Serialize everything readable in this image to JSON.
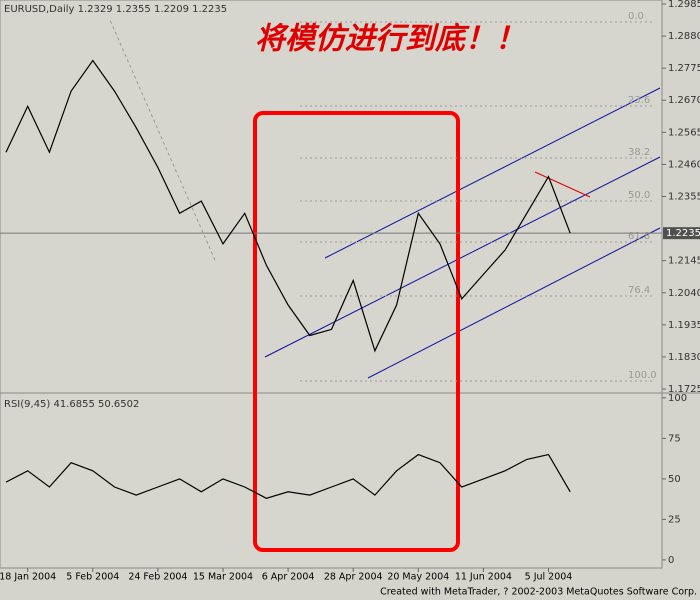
{
  "annotation": "将模仿进行到底！！",
  "footer": "Created with MetaTrader, ? 2002-2003 MetaQuotes Software Corp.",
  "chart_data": [
    {
      "type": "line",
      "title": "EURUSD,Daily  1.2329 1.2355 1.2209 1.2235",
      "categories": [
        null,
        "18 Jan 2004",
        null,
        null,
        "5 Feb 2004",
        null,
        null,
        "24 Feb 2004",
        null,
        null,
        "15 Mar 2004",
        null,
        null,
        "6 Apr 2004",
        null,
        null,
        "28 Apr 2004",
        null,
        null,
        "20 May 2004",
        null,
        null,
        "11 Jun 2004",
        null,
        null,
        "5 Jul 2004",
        null
      ],
      "values": [
        1.25,
        1.265,
        1.25,
        1.27,
        1.28,
        1.27,
        1.258,
        1.245,
        1.23,
        1.234,
        1.22,
        1.23,
        1.213,
        1.2,
        1.19,
        1.192,
        1.208,
        1.185,
        1.2,
        1.23,
        1.22,
        1.202,
        1.21,
        1.218,
        1.23,
        1.242,
        1.2235
      ],
      "color": "#000000",
      "ylim": [
        1.1712,
        1.2998
      ],
      "yticks": [
        1.2985,
        {
          "value": 1.288,
          "label": "1.2880"
        },
        1.2775,
        {
          "value": 1.267,
          "label": "1.2670"
        },
        1.2565,
        {
          "value": 1.246,
          "label": "1.2460"
        },
        1.2355,
        1.2145,
        {
          "value": 1.204,
          "label": "1.2040"
        },
        1.1935,
        {
          "value": 1.183,
          "label": "1.1830"
        },
        1.1725
      ],
      "current_price": 1.2235,
      "fib_levels": [
        "0.0",
        "23.6",
        "38.2",
        "50.0",
        "61.8",
        "76.4",
        "100.0"
      ]
    },
    {
      "type": "line",
      "title": "RSI(9,45)  41.6855 50.6502",
      "values": [
        48,
        55,
        45,
        60,
        55,
        45,
        40,
        45,
        50,
        42,
        50,
        45,
        38,
        42,
        40,
        45,
        50,
        40,
        55,
        65,
        60,
        45,
        50,
        55,
        62,
        65,
        42
      ],
      "color": "#000000",
      "ylim": [
        -5,
        103
      ],
      "yticks": [
        0,
        25,
        50,
        75,
        100
      ]
    }
  ]
}
